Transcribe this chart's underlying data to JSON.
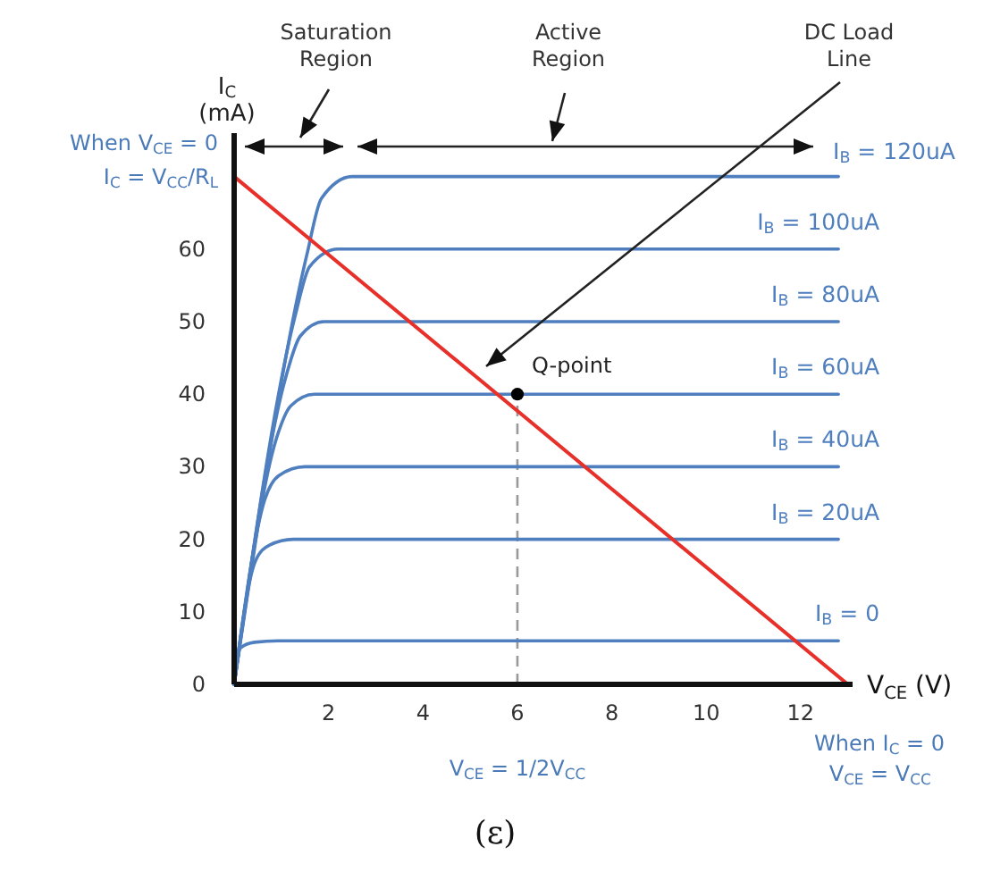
{
  "chart_data": {
    "type": "line",
    "xlabel": "V$_{CE}$ (V)",
    "ylabel": "I$_{C}$\n(mA)",
    "xlim": [
      0,
      13.1
    ],
    "ylim": [
      0,
      76
    ],
    "xticks": [
      2,
      4,
      6,
      8,
      10,
      12
    ],
    "yticks": [
      0,
      10,
      20,
      30,
      40,
      50,
      60
    ],
    "grid": false,
    "line_style": "solid",
    "series": [
      {
        "name": "I$_{B}$ = 0",
        "color": "#4f7fbf",
        "x": [
          0,
          0.13,
          0.43,
          0.93,
          12.8
        ],
        "values": [
          0,
          5,
          5.8,
          6,
          6
        ]
      },
      {
        "name": "I$_{B}$ = 20uA",
        "color": "#4f7fbf",
        "x": [
          0,
          0.45,
          0.75,
          1.25,
          12.8
        ],
        "values": [
          0,
          17,
          19.2,
          20,
          20
        ]
      },
      {
        "name": "I$_{B}$ = 40uA",
        "color": "#4f7fbf",
        "x": [
          0,
          0.65,
          0.95,
          1.5,
          12.8
        ],
        "values": [
          0,
          25.5,
          28.8,
          30,
          30
        ]
      },
      {
        "name": "I$_{B}$ = 60uA",
        "color": "#4f7fbf",
        "x": [
          0,
          0.9,
          1.2,
          1.7,
          12.8
        ],
        "values": [
          0,
          34,
          38.4,
          40,
          40
        ]
      },
      {
        "name": "I$_{B}$ = 80uA",
        "color": "#4f7fbf",
        "x": [
          0,
          1.1,
          1.4,
          1.9,
          12.8
        ],
        "values": [
          0,
          42.5,
          48,
          50,
          50
        ]
      },
      {
        "name": "I$_{B}$ = 100uA",
        "color": "#4f7fbf",
        "x": [
          0,
          1.3,
          1.6,
          2.2,
          12.8
        ],
        "values": [
          0,
          51,
          57.6,
          60,
          60
        ]
      },
      {
        "name": "I$_{B}$ = 120uA",
        "color": "#4f7fbf",
        "x": [
          0,
          1.55,
          1.85,
          2.5,
          12.8
        ],
        "values": [
          0,
          59.5,
          67,
          70,
          70
        ]
      },
      {
        "type": "line",
        "color": "#e8302a",
        "x": [
          0,
          13
        ],
        "values": [
          70,
          0
        ]
      },
      {
        "type": "scatter",
        "color": "#000000",
        "marker": "circle",
        "x": [
          6
        ],
        "values": [
          40
        ]
      }
    ],
    "ref_lines": [
      {
        "axis": "x",
        "value": 6,
        "color": "#999999",
        "line_style": "dashed"
      }
    ],
    "annotations": [
      "Saturation\nRegion",
      "Active\nRegion",
      "DC Load\nLine",
      {
        "text": "Q-point",
        "x": 6,
        "y": 40
      },
      "When V$_{CE}$ = 0",
      "I$_{C}$ = V$_{CC}$/R$_{L}$",
      "V$_{CE}$ = 1/2V$_{CC}$",
      "When I$_{C}$ = 0",
      "V$_{CE}$ = V$_{CC}$",
      "(ε)"
    ]
  }
}
